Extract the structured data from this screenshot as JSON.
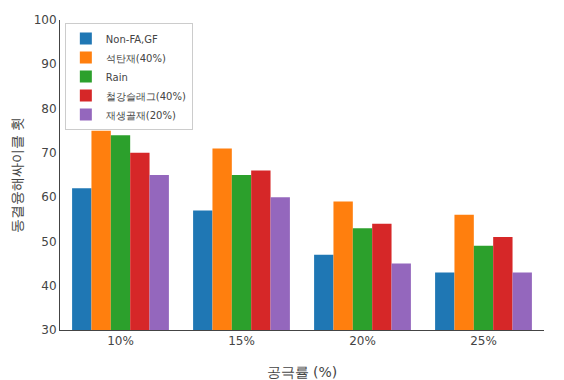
{
  "chart_data": {
    "type": "bar",
    "xlabel": "공극률 (%)",
    "ylabel": "동결융해싸이클 횟",
    "categories": [
      "10%",
      "15%",
      "20%",
      "25%"
    ],
    "series": [
      {
        "name": "Non-FA,GF",
        "values": [
          62,
          57,
          47,
          43
        ]
      },
      {
        "name": "석탄재(40%)",
        "values": [
          75,
          71,
          59,
          56
        ]
      },
      {
        "name": "Rain",
        "values": [
          74,
          65,
          53,
          49
        ]
      },
      {
        "name": "철강슬래그(40%)",
        "values": [
          70,
          66,
          54,
          51
        ]
      },
      {
        "name": "재생골재(20%)",
        "values": [
          65,
          60,
          45,
          43
        ]
      }
    ],
    "ylim": [
      30,
      100
    ],
    "yticks": [
      30,
      40,
      50,
      60,
      70,
      80,
      90,
      100
    ],
    "grid": false,
    "legend": "upper left"
  }
}
